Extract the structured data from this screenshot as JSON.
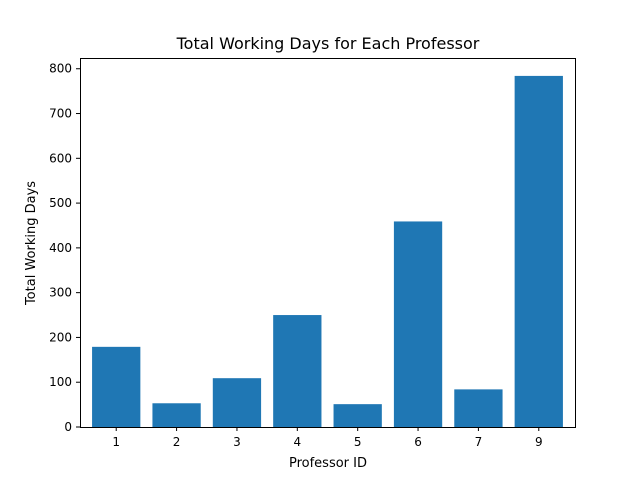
{
  "chart_data": {
    "type": "bar",
    "title": "Total Working Days for Each Professor",
    "xlabel": "Professor ID",
    "ylabel": "Total Working Days",
    "categories": [
      "1",
      "2",
      "3",
      "4",
      "5",
      "6",
      "7",
      "9"
    ],
    "values": [
      179,
      53,
      109,
      250,
      51,
      459,
      84,
      784
    ],
    "ylim": [
      0,
      824
    ],
    "yticks": [
      0,
      100,
      200,
      300,
      400,
      500,
      600,
      700,
      800
    ],
    "bar_color": "#1f77b4",
    "grid": false,
    "legend": "none"
  }
}
